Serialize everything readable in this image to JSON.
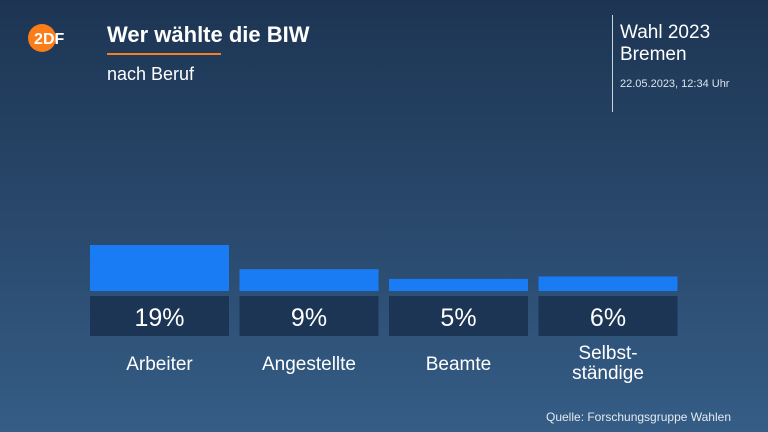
{
  "header": {
    "logo_text": "ZDF",
    "title": "Wer wählte die BIW",
    "subtitle": "nach Beruf",
    "election": "Wahl 2023",
    "region": "Bremen",
    "timestamp": "22.05.2023, 12:34 Uhr"
  },
  "footer": {
    "source": "Quelle: Forschungsgruppe Wahlen"
  },
  "colors": {
    "bar": "#1a7cf5",
    "label_box": "#1d3554",
    "accent": "#f47f25",
    "logo": "#fa7d19"
  },
  "chart_data": {
    "type": "bar",
    "categories": [
      "Arbeiter",
      "Angestellte",
      "Beamte",
      "Selbst-\nständige"
    ],
    "values": [
      19,
      9,
      5,
      6
    ],
    "value_labels": [
      "19%",
      "9%",
      "5%",
      "6%"
    ],
    "unit": "%",
    "title": "Wer wählte die BIW",
    "subtitle": "nach Beruf",
    "xlabel": "",
    "ylabel": "",
    "ylim": [
      0,
      19
    ],
    "grid": false,
    "legend": "none"
  }
}
